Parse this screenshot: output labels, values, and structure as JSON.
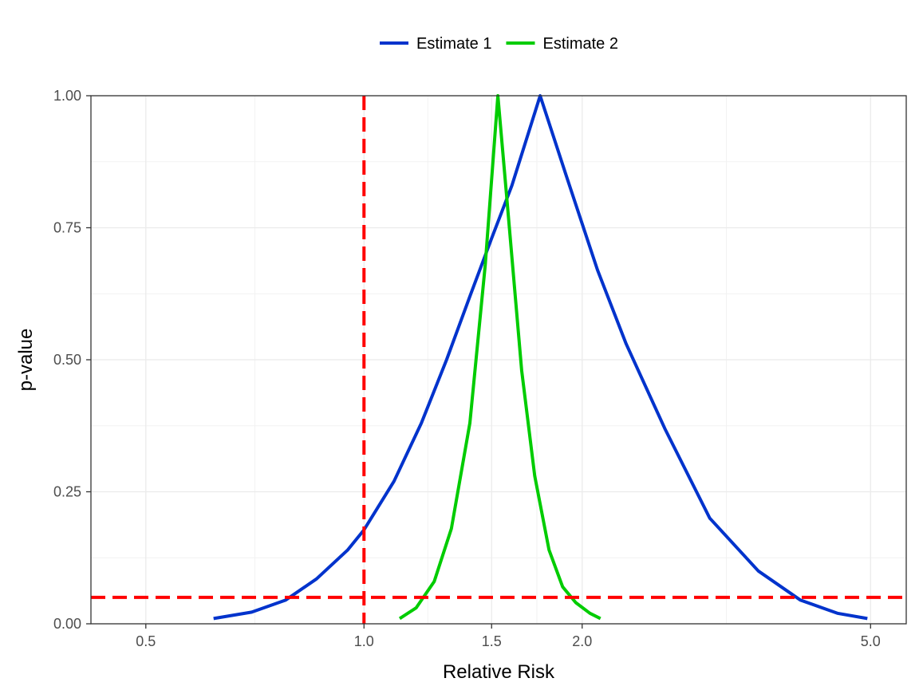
{
  "chart_data": {
    "type": "line",
    "xlabel": "Relative Risk",
    "ylabel": "p-value",
    "x_scale": "log",
    "xlim": [
      0.42,
      5.6
    ],
    "ylim": [
      0,
      1
    ],
    "x_ticks": [
      0.5,
      1.0,
      1.5,
      2.0,
      5.0
    ],
    "x_tick_labels": [
      "0.5",
      "1.0",
      "1.5",
      "2.0",
      "5.0"
    ],
    "y_ticks": [
      0,
      0.25,
      0.5,
      0.75,
      1.0
    ],
    "y_tick_labels": [
      "0.00",
      "0.25",
      "0.50",
      "0.75",
      "1.00"
    ],
    "grid": true,
    "legend_position": "top",
    "series": [
      {
        "name": "Estimate 1",
        "color": "#0033cc",
        "x": [
          0.62,
          0.7,
          0.78,
          0.86,
          0.95,
          1.0,
          1.1,
          1.2,
          1.3,
          1.4,
          1.5,
          1.6,
          1.75,
          1.9,
          2.1,
          2.3,
          2.6,
          3.0,
          3.5,
          4.0,
          4.5,
          4.95
        ],
        "y": [
          0.01,
          0.022,
          0.045,
          0.085,
          0.14,
          0.178,
          0.27,
          0.38,
          0.5,
          0.62,
          0.73,
          0.83,
          1.0,
          0.85,
          0.67,
          0.53,
          0.37,
          0.2,
          0.1,
          0.045,
          0.02,
          0.01
        ]
      },
      {
        "name": "Estimate 2",
        "color": "#00cc00",
        "x": [
          1.12,
          1.18,
          1.25,
          1.32,
          1.4,
          1.47,
          1.53,
          1.58,
          1.65,
          1.72,
          1.8,
          1.88,
          1.96,
          2.05,
          2.12
        ],
        "y": [
          0.01,
          0.03,
          0.08,
          0.18,
          0.38,
          0.68,
          1.0,
          0.78,
          0.48,
          0.28,
          0.14,
          0.07,
          0.04,
          0.02,
          0.01
        ]
      }
    ],
    "reference_lines": [
      {
        "axis": "x",
        "value": 1.0,
        "color": "#ff0000",
        "style": "dashed"
      },
      {
        "axis": "y",
        "value": 0.05,
        "color": "#ff0000",
        "style": "dashed"
      }
    ]
  }
}
